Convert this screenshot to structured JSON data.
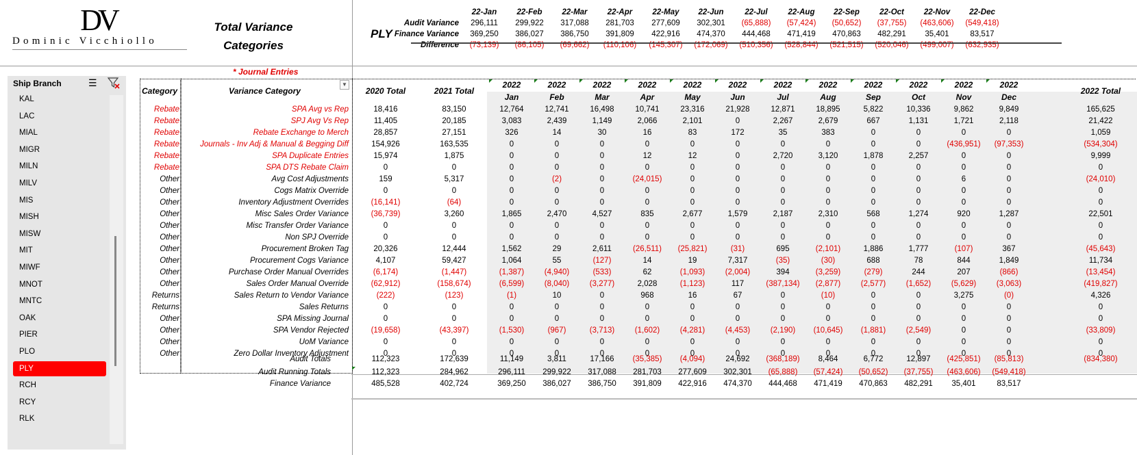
{
  "logo": {
    "monogram": "DV",
    "name": "Dominic Vicchiollo"
  },
  "title": {
    "line1": "Total Variance",
    "line2": "Categories"
  },
  "branch_code": "PLY",
  "journal_note": "* Journal Entries",
  "summary": {
    "months": [
      "22-Jan",
      "22-Feb",
      "22-Mar",
      "22-Apr",
      "22-May",
      "22-Jun",
      "22-Jul",
      "22-Aug",
      "22-Sep",
      "22-Oct",
      "22-Nov",
      "22-Dec"
    ],
    "rows": [
      {
        "label": "Audit Variance",
        "values": [
          "296,111",
          "299,922",
          "317,088",
          "281,703",
          "277,609",
          "302,301",
          "(65,888)",
          "(57,424)",
          "(50,652)",
          "(37,755)",
          "(463,606)",
          "(549,418)"
        ]
      },
      {
        "label": "Finance Variance",
        "values": [
          "369,250",
          "386,027",
          "386,750",
          "391,809",
          "422,916",
          "474,370",
          "444,468",
          "471,419",
          "470,863",
          "482,291",
          "35,401",
          "83,517"
        ]
      },
      {
        "label": "Difference",
        "values": [
          "(73,139)",
          "(86,105)",
          "(69,662)",
          "(110,106)",
          "(145,307)",
          "(172,069)",
          "(510,356)",
          "(528,844)",
          "(521,515)",
          "(520,046)",
          "(499,007)",
          "(632,935)"
        ]
      }
    ]
  },
  "slicer": {
    "title": "Ship Branch",
    "multi_select_icon": "multi-select-icon",
    "clear_filter_icon": "clear-filter-icon",
    "items": [
      "KAL",
      "LAC",
      "MIAL",
      "MIGR",
      "MILN",
      "MILV",
      "MIS",
      "MISH",
      "MISW",
      "MIT",
      "MIWF",
      "MNOT",
      "MNTC",
      "OAK",
      "PIER",
      "PLO",
      "PLY",
      "RCH",
      "RCY",
      "RLK"
    ],
    "selected": "PLY"
  },
  "table": {
    "headers": {
      "category": "Category",
      "variance_category": "Variance Category",
      "total_2020": "2020 Total",
      "total_2021": "2021 Total",
      "year": "2022",
      "months": [
        "Jan",
        "Feb",
        "Mar",
        "Apr",
        "May",
        "Jun",
        "Jul",
        "Aug",
        "Sep",
        "Oct",
        "Nov",
        "Dec"
      ],
      "total_2022": "2022 Total"
    },
    "rows": [
      {
        "cat": "Rebate",
        "name": "SPA Avg vs Rep",
        "v": [
          "18,416",
          "83,150",
          "12,764",
          "12,741",
          "16,498",
          "10,741",
          "23,316",
          "21,928",
          "12,871",
          "18,895",
          "5,822",
          "10,336",
          "9,862",
          "9,849",
          "165,625"
        ]
      },
      {
        "cat": "Rebate",
        "name": "SPJ Avg Vs Rep",
        "v": [
          "11,405",
          "20,185",
          "3,083",
          "2,439",
          "1,149",
          "2,066",
          "2,101",
          "0",
          "2,267",
          "2,679",
          "667",
          "1,131",
          "1,721",
          "2,118",
          "21,422"
        ]
      },
      {
        "cat": "Rebate",
        "name": "Rebate Exchange to Merch",
        "v": [
          "28,857",
          "27,151",
          "326",
          "14",
          "30",
          "16",
          "83",
          "172",
          "35",
          "383",
          "0",
          "0",
          "0",
          "0",
          "1,059"
        ]
      },
      {
        "cat": "Rebate",
        "name": "Journals - Inv Adj & Manual & Begging Diff",
        "v": [
          "154,926",
          "163,535",
          "0",
          "0",
          "0",
          "0",
          "0",
          "0",
          "0",
          "0",
          "0",
          "0",
          "(436,951)",
          "(97,353)",
          "(534,304)"
        ]
      },
      {
        "cat": "Rebate",
        "name": "SPA Duplicate Entries",
        "v": [
          "15,974",
          "1,875",
          "0",
          "0",
          "0",
          "12",
          "12",
          "0",
          "2,720",
          "3,120",
          "1,878",
          "2,257",
          "0",
          "0",
          "9,999"
        ]
      },
      {
        "cat": "Rebate",
        "name": "SPA DTS Rebate Claim",
        "v": [
          "0",
          "0",
          "0",
          "0",
          "0",
          "0",
          "0",
          "0",
          "0",
          "0",
          "0",
          "0",
          "0",
          "0",
          "0"
        ]
      },
      {
        "cat": "Other",
        "name": "Avg Cost Adjustments",
        "v": [
          "159",
          "5,317",
          "0",
          "(2)",
          "0",
          "(24,015)",
          "0",
          "0",
          "0",
          "0",
          "0",
          "0",
          "6",
          "0",
          "(24,010)"
        ]
      },
      {
        "cat": "Other",
        "name": "Cogs Matrix Override",
        "v": [
          "0",
          "0",
          "0",
          "0",
          "0",
          "0",
          "0",
          "0",
          "0",
          "0",
          "0",
          "0",
          "0",
          "0",
          "0"
        ]
      },
      {
        "cat": "Other",
        "name": "Inventory Adjustment Overrides",
        "v": [
          "(16,141)",
          "(64)",
          "0",
          "0",
          "0",
          "0",
          "0",
          "0",
          "0",
          "0",
          "0",
          "0",
          "0",
          "0",
          "0"
        ]
      },
      {
        "cat": "Other",
        "name": "Misc Sales Order Variance",
        "v": [
          "(36,739)",
          "3,260",
          "1,865",
          "2,470",
          "4,527",
          "835",
          "2,677",
          "1,579",
          "2,187",
          "2,310",
          "568",
          "1,274",
          "920",
          "1,287",
          "22,501"
        ]
      },
      {
        "cat": "Other",
        "name": "Misc Transfer Order Variance",
        "v": [
          "0",
          "0",
          "0",
          "0",
          "0",
          "0",
          "0",
          "0",
          "0",
          "0",
          "0",
          "0",
          "0",
          "0",
          "0"
        ]
      },
      {
        "cat": "Other",
        "name": "Non SPJ Override",
        "v": [
          "0",
          "0",
          "0",
          "0",
          "0",
          "0",
          "0",
          "0",
          "0",
          "0",
          "0",
          "0",
          "0",
          "0",
          "0"
        ]
      },
      {
        "cat": "Other",
        "name": "Procurement Broken Tag",
        "v": [
          "20,326",
          "12,444",
          "1,562",
          "29",
          "2,611",
          "(26,511)",
          "(25,821)",
          "(31)",
          "695",
          "(2,101)",
          "1,886",
          "1,777",
          "(107)",
          "367",
          "(45,643)"
        ]
      },
      {
        "cat": "Other",
        "name": "Procurement Cogs Variance",
        "v": [
          "4,107",
          "59,427",
          "1,064",
          "55",
          "(127)",
          "14",
          "19",
          "7,317",
          "(35)",
          "(30)",
          "688",
          "78",
          "844",
          "1,849",
          "11,734"
        ]
      },
      {
        "cat": "Other",
        "name": "Purchase Order Manual Overrides",
        "v": [
          "(6,174)",
          "(1,447)",
          "(1,387)",
          "(4,940)",
          "(533)",
          "62",
          "(1,093)",
          "(2,004)",
          "394",
          "(3,259)",
          "(279)",
          "244",
          "207",
          "(866)",
          "(13,454)"
        ]
      },
      {
        "cat": "Other",
        "name": "Sales Order Manual Override",
        "v": [
          "(62,912)",
          "(158,674)",
          "(6,599)",
          "(8,040)",
          "(3,277)",
          "2,028",
          "(1,123)",
          "117",
          "(387,134)",
          "(2,877)",
          "(2,577)",
          "(1,652)",
          "(5,629)",
          "(3,063)",
          "(419,827)"
        ]
      },
      {
        "cat": "Returns",
        "name": "Sales Return to Vendor Variance",
        "v": [
          "(222)",
          "(123)",
          "(1)",
          "10",
          "0",
          "968",
          "16",
          "67",
          "0",
          "(10)",
          "0",
          "0",
          "3,275",
          "(0)",
          "4,326"
        ]
      },
      {
        "cat": "Returns",
        "name": "Sales Returns",
        "v": [
          "0",
          "0",
          "0",
          "0",
          "0",
          "0",
          "0",
          "0",
          "0",
          "0",
          "0",
          "0",
          "0",
          "0",
          "0"
        ]
      },
      {
        "cat": "Other",
        "name": "SPA Missing Journal",
        "v": [
          "0",
          "0",
          "0",
          "0",
          "0",
          "0",
          "0",
          "0",
          "0",
          "0",
          "0",
          "0",
          "0",
          "0",
          "0"
        ]
      },
      {
        "cat": "Other",
        "name": "SPA Vendor Rejected",
        "v": [
          "(19,658)",
          "(43,397)",
          "(1,530)",
          "(967)",
          "(3,713)",
          "(1,602)",
          "(4,281)",
          "(4,453)",
          "(2,190)",
          "(10,645)",
          "(1,881)",
          "(2,549)",
          "0",
          "0",
          "(33,809)"
        ]
      },
      {
        "cat": "Other",
        "name": "UoM Variance",
        "v": [
          "0",
          "0",
          "0",
          "0",
          "0",
          "0",
          "0",
          "0",
          "0",
          "0",
          "0",
          "0",
          "0",
          "0",
          "0"
        ]
      },
      {
        "cat": "Other",
        "name": "Zero Dollar Inventory Adjustment",
        "v": [
          "0",
          "0",
          "0",
          "0",
          "0",
          "0",
          "0",
          "0",
          "0",
          "0",
          "0",
          "0",
          "0",
          "0",
          "0"
        ]
      }
    ],
    "totals": [
      {
        "label": "Audit Totals",
        "v": [
          "112,323",
          "172,639",
          "11,149",
          "3,811",
          "17,166",
          "(35,385)",
          "(4,094)",
          "24,692",
          "(368,189)",
          "8,464",
          "6,772",
          "12,897",
          "(425,851)",
          "(85,813)",
          "(834,380)"
        ]
      },
      {
        "label": "Audit Running Totals",
        "v": [
          "112,323",
          "284,962",
          "296,111",
          "299,922",
          "317,088",
          "281,703",
          "277,609",
          "302,301",
          "(65,888)",
          "(57,424)",
          "(50,652)",
          "(37,755)",
          "(463,606)",
          "(549,418)",
          ""
        ]
      },
      {
        "label": "Finance Variance",
        "v": [
          "485,528",
          "402,724",
          "369,250",
          "386,027",
          "386,750",
          "391,809",
          "422,916",
          "474,370",
          "444,468",
          "471,419",
          "470,863",
          "482,291",
          "35,401",
          "83,517",
          ""
        ]
      }
    ]
  },
  "colors": {
    "negative": "#e00000",
    "rebate": "#e00000",
    "selected": "#ff0000",
    "panel": "#e6e6e6"
  }
}
